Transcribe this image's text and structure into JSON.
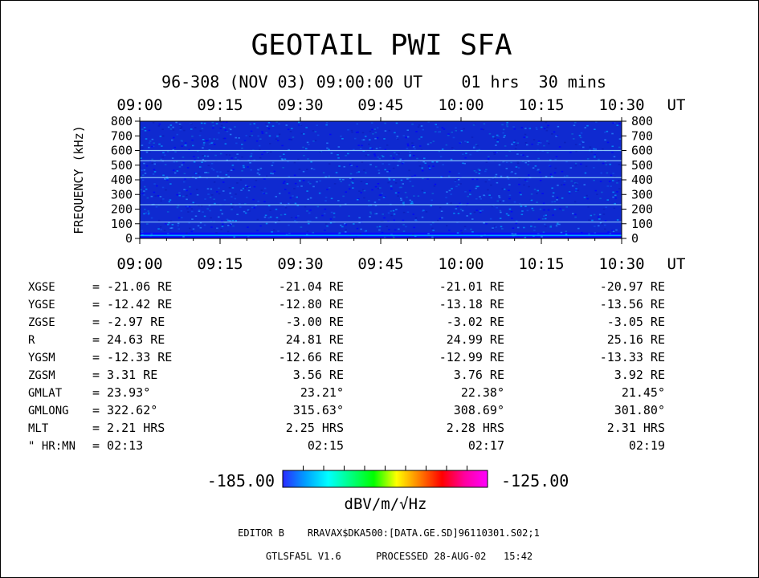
{
  "header": {
    "title": "GEOTAIL PWI SFA",
    "subtitle": "96-308 (NOV 03) 09:00:00 UT    01 hrs  30 mins"
  },
  "chart_data": {
    "type": "heatmap",
    "x_unit_label": "UT",
    "ylabel": "FREQUENCY (kHz)",
    "time_ticks": [
      "09:00",
      "09:15",
      "09:30",
      "09:45",
      "10:00",
      "10:15",
      "10:30"
    ],
    "time_range_minutes": [
      0,
      90
    ],
    "freq_ticks": [
      0,
      100,
      200,
      300,
      400,
      500,
      600,
      700,
      800
    ],
    "ylim": [
      0,
      800
    ],
    "bands_khz": [
      20,
      112,
      230,
      415,
      530,
      600
    ],
    "colorbar": {
      "min_label": "-185.00",
      "max_label": "-125.00",
      "unit": "dBV/m/√Hz",
      "colors": [
        "#2a2aff",
        "#00a0ff",
        "#00ffff",
        "#00ff80",
        "#00ff00",
        "#ffff00",
        "#ff8000",
        "#ff0000",
        "#ff00a0",
        "#ff00ff"
      ]
    }
  },
  "ephemeris": {
    "labels": [
      "XGSE",
      "YGSE",
      "ZGSE",
      "R",
      "YGSM",
      "ZGSM",
      "GMLAT",
      "GMLONG",
      "MLT",
      "\" HR:MN"
    ],
    "rows": [
      [
        "= -21.06 RE",
        "-21.04 RE",
        "-21.01 RE",
        "-20.97 RE"
      ],
      [
        "= -12.42 RE",
        "-12.80 RE",
        "-13.18 RE",
        "-13.56 RE"
      ],
      [
        "=  -2.97 RE",
        "-3.00 RE",
        "-3.02 RE",
        "-3.05 RE"
      ],
      [
        "=  24.63 RE",
        "24.81 RE",
        "24.99 RE",
        "25.16 RE"
      ],
      [
        "= -12.33 RE",
        "-12.66 RE",
        "-12.99 RE",
        "-13.33 RE"
      ],
      [
        "=   3.31 RE",
        "3.56 RE",
        "3.76 RE",
        "3.92 RE"
      ],
      [
        "=  23.93°",
        "23.21°",
        "22.38°",
        "21.45°"
      ],
      [
        "= 322.62°",
        "315.63°",
        "308.69°",
        "301.80°"
      ],
      [
        "=   2.21 HRS",
        "2.25 HRS",
        "2.28 HRS",
        "2.31 HRS"
      ],
      [
        "=  02:13",
        "02:15",
        "02:17",
        "02:19"
      ]
    ]
  },
  "footer": {
    "line1": "EDITOR B    RRAVAX$DKA500:[DATA.GE.SD]96110301.S02;1",
    "line2": "GTLSFA5L V1.6      PROCESSED 28-AUG-02   15:42"
  }
}
